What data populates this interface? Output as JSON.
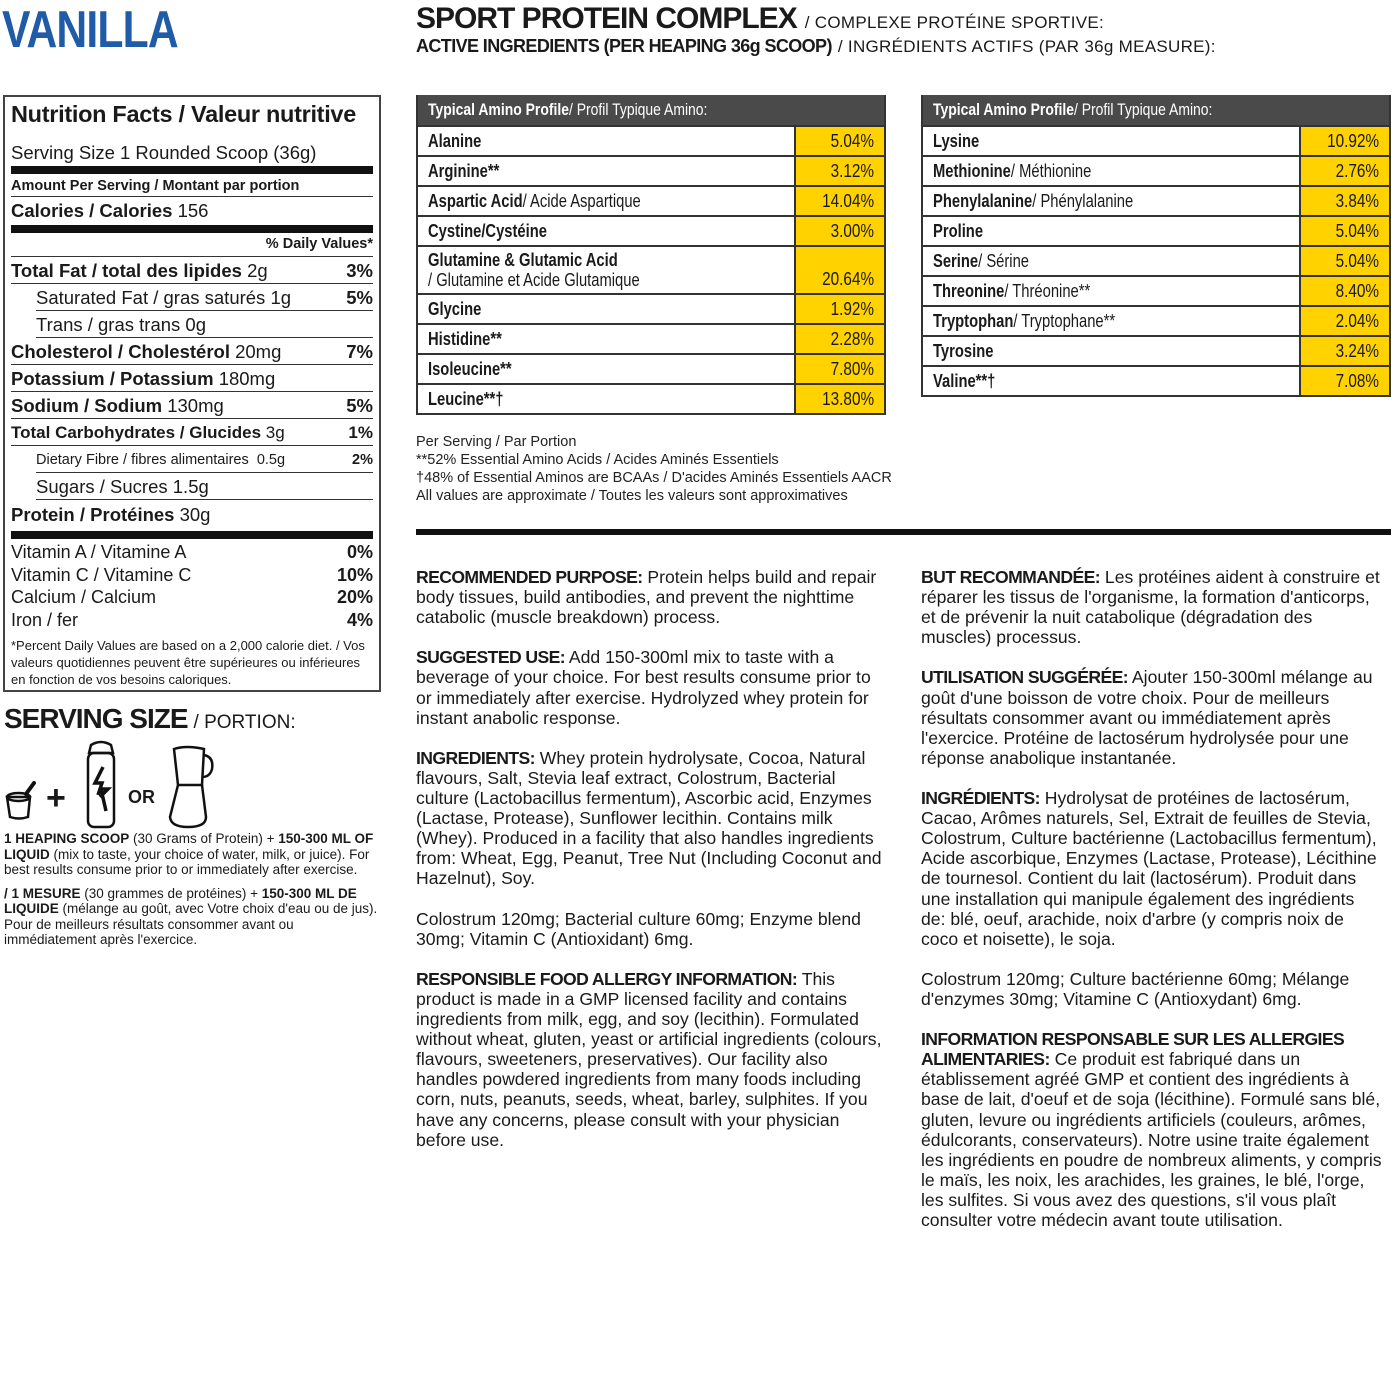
{
  "flavor": "VANILLA",
  "title": {
    "main": "SPORT PROTEIN COMPLEX",
    "main_fr": "/ COMPLEXE PROTÉINE SPORTIVE:",
    "sub": "ACTIVE INGREDIENTS (PER HEAPING 36g SCOOP)",
    "sub_fr": "/ INGRÉDIENTS ACTIFS (PAR 36g MEASURE):"
  },
  "nutrition": {
    "heading": "Nutrition Facts / Valeur nutritive",
    "serving_size": "Serving Size 1 Rounded Scoop (36g)",
    "amount_per_serving": "Amount Per Serving / Montant par portion",
    "calories_label": "Calories / Calories",
    "calories_value": "156",
    "dv_header": "% Daily Values*",
    "rows": [
      {
        "label": "Total Fat / total des lipides",
        "amount": "2g",
        "dv": "3%",
        "bold": true,
        "indent": false
      },
      {
        "label": "Saturated Fat / gras saturés",
        "amount": "1g",
        "dv": "5%",
        "bold": false,
        "indent": true
      },
      {
        "label": "Trans / gras trans",
        "amount": "0g",
        "dv": "",
        "bold": false,
        "indent": true
      },
      {
        "label": "Cholesterol / Cholestérol",
        "amount": "20mg",
        "dv": "7%",
        "bold": true,
        "indent": false
      },
      {
        "label": "Potassium / Potassium",
        "amount": "180mg",
        "dv": "",
        "bold": true,
        "indent": false
      },
      {
        "label": "Sodium / Sodium",
        "amount": "130mg",
        "dv": "5%",
        "bold": true,
        "indent": false
      },
      {
        "label": "Total Carbohydrates / Glucides",
        "amount": "3g",
        "dv": "1%",
        "bold": true,
        "indent": false,
        "small": true
      },
      {
        "label": "Dietary Fibre / fibres alimentaires",
        "amount": "0.5g",
        "dv": "2%",
        "bold": false,
        "indent": true,
        "small": true
      },
      {
        "label": "Sugars / Sucres",
        "amount": "1.5g",
        "dv": "",
        "bold": false,
        "indent": true
      },
      {
        "label": "Protein / Protéines",
        "amount": "30g",
        "dv": "",
        "bold": true,
        "indent": false
      }
    ],
    "vitamins": [
      {
        "label": "Vitamin A / Vitamine A",
        "dv": "0%"
      },
      {
        "label": "Vitamin C / Vitamine C",
        "dv": "10%"
      },
      {
        "label": "Calcium / Calcium",
        "dv": "20%"
      },
      {
        "label": "Iron / fer",
        "dv": "4%"
      }
    ],
    "footnote": "*Percent Daily Values are based on a 2,000 calorie diet. / Vos valeurs quotidiennes peuvent être supérieures ou inférieures en fonction de vos besoins caloriques."
  },
  "serving": {
    "heading": "SERVING SIZE",
    "heading_fr": "/ PORTION:",
    "plus": "+",
    "or": "OR",
    "icons": [
      "scoop-icon",
      "shaker-bottle-icon",
      "blender-icon"
    ],
    "en_b1": "1 HEAPING SCOOP",
    "en_t1": " (30 Grams of Protein) + ",
    "en_b2": "150-300 ML OF LIQUID",
    "en_t2": " (mix to taste, your choice of water, milk, or juice). For best results consume prior to or immediately after exercise.",
    "fr_b1": "/ 1 MESURE",
    "fr_t1": " (30 grammes de protéines) + ",
    "fr_b2": "150-300 ML DE LIQUIDE",
    "fr_t2": " (mélange au goût, avec Votre choix d'eau ou de jus). Pour de meilleurs résultats consommer avant ou immédiatement après l'exercice."
  },
  "amino_header_b": "Typical Amino Profile",
  "amino_header_r": " / Profil Typique Amino:",
  "amino_left": [
    {
      "name": "Alanine",
      "fr": "",
      "value": "5.04%"
    },
    {
      "name": "Arginine**",
      "fr": "",
      "value": "3.12%"
    },
    {
      "name": "Aspartic Acid",
      "fr": " / Acide Aspartique",
      "value": "14.04%"
    },
    {
      "name": "Cystine/Cystéine",
      "fr": "",
      "value": "3.00%"
    },
    {
      "name": "Glutamine & Glutamic Acid",
      "fr2": "/ Glutamine et Acide Glutamique",
      "value": "20.64%"
    },
    {
      "name": "Glycine",
      "fr": "",
      "value": "1.92%"
    },
    {
      "name": "Histidine**",
      "fr": "",
      "value": "2.28%"
    },
    {
      "name": "Isoleucine**",
      "fr": "",
      "value": "7.80%"
    },
    {
      "name": "Leucine**†",
      "fr": "",
      "value": "13.80%"
    }
  ],
  "amino_right": [
    {
      "name": "Lysine",
      "fr": "",
      "value": "10.92%"
    },
    {
      "name": "Methionine",
      "fr": " / Méthionine",
      "value": "2.76%"
    },
    {
      "name": "Phenylalanine",
      "fr": " / Phénylalanine",
      "value": "3.84%"
    },
    {
      "name": "Proline",
      "fr": "",
      "value": "5.04%"
    },
    {
      "name": "Serine",
      "fr": " / Sérine",
      "value": "5.04%"
    },
    {
      "name": "Threonine",
      "fr": " / Thréonine**",
      "value": "8.40%"
    },
    {
      "name": "Tryptophan",
      "fr": " / Tryptophane**",
      "value": "2.04%"
    },
    {
      "name": "Tyrosine",
      "fr": "",
      "value": "3.24%"
    },
    {
      "name": "Valine**†",
      "fr": "",
      "value": "7.08%"
    }
  ],
  "notes": [
    "Per Serving / Par Portion",
    "**52% Essential Amino Acids / Acides Aminés Essentiels",
    "†48% of Essential Aminos are BCAAs / D'acides Aminés Essentiels AACR",
    "All values are approximate / Toutes les valeurs sont approximatives"
  ],
  "colors": {
    "flavor": "#1f5ba6",
    "value_cell": "#ffd200",
    "table_header": "#4a4a4a"
  },
  "en": [
    {
      "k": "RECOMMENDED PURPOSE:",
      "t": " Protein helps build and repair body tissues, build antibodies, and prevent the nighttime catabolic (muscle breakdown) process."
    },
    {
      "k": "SUGGESTED USE:",
      "t": " Add 150-300ml mix to taste with a beverage of your choice. For best results consume prior to or immediately after exercise. Hydrolyzed whey protein for instant anabolic response."
    },
    {
      "k": "INGREDIENTS:",
      "t": " Whey protein hydrolysate, Cocoa, Natural flavours, Salt, Stevia leaf extract, Colostrum, Bacterial culture (Lactobacillus fermentum), Ascorbic acid, Enzymes (Lactase, Protease), Sunflower lecithin. Contains milk (Whey). Produced in a facility that also handles ingredients from: Wheat, Egg, Peanut, Tree Nut (Including Coconut and Hazelnut), Soy."
    },
    {
      "k": "",
      "t": "Colostrum 120mg; Bacterial culture 60mg; Enzyme blend 30mg; Vitamin C (Antioxidant) 6mg."
    },
    {
      "k": "RESPONSIBLE FOOD ALLERGY INFORMATION:",
      "t": " This product is made in a GMP licensed facility and contains ingredients from milk, egg, and soy (lecithin). Formulated without wheat, gluten, yeast or artificial ingredients (colours, flavours, sweeteners, preservatives). Our facility also handles powdered ingredients from many foods including corn, nuts, peanuts, seeds, wheat, barley, sulphites. If you have any concerns, please consult with your physician before use."
    }
  ],
  "fr": [
    {
      "k": "BUT RECOMMANDÉE:",
      "t": " Les protéines aident à construire et réparer les tissus de l'organisme, la formation d'anticorps, et de prévenir la nuit catabolique (dégradation des muscles) processus."
    },
    {
      "k": "UTILISATION SUGGÉRÉE:",
      "t": " Ajouter 150-300ml mélange au goût d'une boisson de votre choix. Pour de meilleurs résultats consommer avant ou immédiatement après l'exercice. Protéine de lactosérum hydrolysée pour une réponse anabolique instantanée."
    },
    {
      "k": "INGRÉDIENTS:",
      "t": " Hydrolysat de protéines de lactosérum, Cacao, Arômes naturels, Sel, Extrait de feuilles de Stevia, Colostrum, Culture bactérienne (Lactobacillus fermentum), Acide ascorbique, Enzymes (Lactase, Protease), Lécithine de tournesol. Contient du lait (lactosérum). Produit dans une installation qui manipule également des ingrédients de: blé, oeuf, arachide, noix d'arbre (y compris noix de coco et noisette), le soja."
    },
    {
      "k": "",
      "t": "Colostrum 120mg; Culture bactérienne 60mg; Mélange d'enzymes 30mg; Vitamine C (Antioxydant) 6mg."
    },
    {
      "k": "INFORMATION RESPONSABLE SUR LES ALLERGIES ALIMENTARIES:",
      "t": " Ce produit est fabriqué dans un établissement agréé GMP et contient des ingrédients à base de lait, d'oeuf et de soja (lécithine). Formulé sans blé, gluten, levure ou ingrédients artificiels (couleurs, arômes, édulcorants, conservateurs). Notre usine traite également les ingrédients en poudre de nombreux aliments, y compris le maïs, les noix, les arachides, les graines, le blé, l'orge, les sulfites. Si vous avez des questions, s'il vous plaît consulter votre médecin avant toute utilisation."
    }
  ]
}
